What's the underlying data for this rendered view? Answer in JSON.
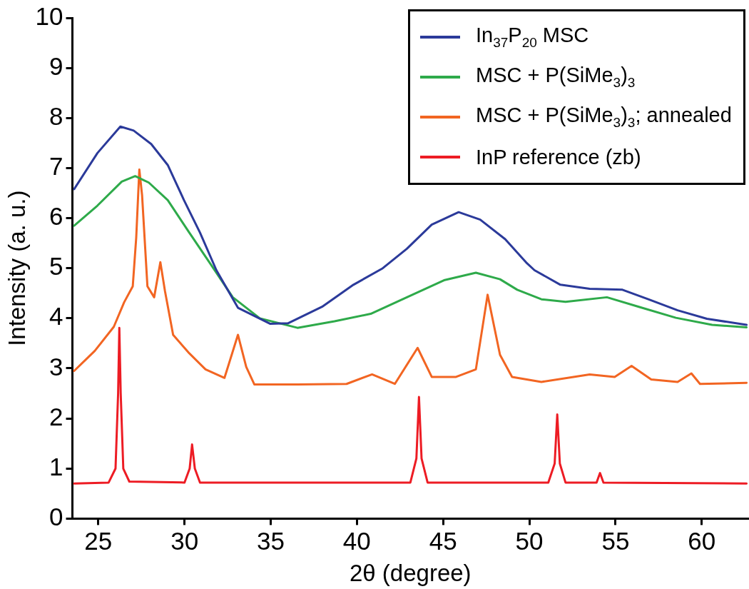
{
  "chart_data": {
    "type": "line",
    "xlabel": "2θ (degree)",
    "ylabel": "Intensity (a. u.)",
    "xlim": [
      23.5,
      62.7
    ],
    "xticks": [
      25,
      30,
      35,
      40,
      45,
      50,
      55,
      60
    ],
    "ylim": [
      0,
      10
    ],
    "yticks": [
      0,
      1,
      2,
      3,
      4,
      5,
      6,
      7,
      8,
      9,
      10
    ],
    "legend": "top right",
    "marker": "none",
    "line_style": "solid",
    "series": [
      {
        "name": "In$_{37}$P$_{20}$ MSC",
        "color": "#2b3a9a",
        "x": [
          23.6,
          24.95,
          26.28,
          27.05,
          28.07,
          29.03,
          29.97,
          30.9,
          31.85,
          33.1,
          34.98,
          36.0,
          37.98,
          39.8,
          41.5,
          42.9,
          44.34,
          45.9,
          47.15,
          48.6,
          49.86,
          50.3,
          51.8,
          53.5,
          55.4,
          56.9,
          58.6,
          60.3,
          62.6
        ],
        "values": [
          6.58,
          7.3,
          7.83,
          7.75,
          7.48,
          7.06,
          6.36,
          5.71,
          4.96,
          4.21,
          3.89,
          3.9,
          4.23,
          4.67,
          5.0,
          5.39,
          5.87,
          6.12,
          5.97,
          5.58,
          5.1,
          4.96,
          4.67,
          4.59,
          4.57,
          4.38,
          4.16,
          3.99,
          3.87
        ]
      },
      {
        "name": "MSC + P(SiMe$_{3}$)$_{3}$",
        "color": "#2eaa4a",
        "x": [
          23.6,
          24.95,
          26.36,
          27.14,
          27.93,
          29.03,
          30.28,
          31.54,
          32.8,
          34.37,
          36.55,
          38.7,
          40.8,
          42.9,
          45.05,
          46.9,
          48.3,
          49.3,
          50.7,
          52.1,
          54.5,
          56.35,
          58.5,
          60.6,
          62.6
        ],
        "values": [
          5.85,
          6.25,
          6.73,
          6.84,
          6.71,
          6.36,
          5.71,
          5.07,
          4.42,
          4.0,
          3.81,
          3.94,
          4.09,
          4.42,
          4.76,
          4.91,
          4.78,
          4.57,
          4.38,
          4.33,
          4.42,
          4.23,
          4.01,
          3.87,
          3.82
        ]
      },
      {
        "name": "MSC + P(SiMe$_{3}$)$_{3}$; annealed",
        "color": "#f26522",
        "x": [
          23.6,
          24.8,
          25.9,
          26.5,
          27.0,
          27.2,
          27.38,
          27.54,
          27.85,
          28.24,
          28.6,
          28.87,
          29.34,
          30.28,
          31.22,
          32.32,
          33.1,
          33.58,
          34.05,
          36.55,
          39.4,
          40.88,
          42.2,
          43.52,
          44.34,
          45.75,
          46.9,
          47.58,
          48.3,
          49.0,
          50.7,
          53.5,
          54.95,
          55.93,
          57.07,
          58.6,
          59.4,
          59.9,
          62.6
        ],
        "values": [
          2.95,
          3.35,
          3.83,
          4.32,
          4.64,
          5.61,
          6.97,
          6.46,
          4.64,
          4.42,
          5.12,
          4.54,
          3.67,
          3.3,
          2.98,
          2.81,
          3.67,
          3.03,
          2.68,
          2.68,
          2.69,
          2.88,
          2.69,
          3.41,
          2.83,
          2.83,
          2.98,
          4.47,
          3.27,
          2.83,
          2.73,
          2.88,
          2.83,
          3.05,
          2.78,
          2.73,
          2.9,
          2.69,
          2.71
        ]
      },
      {
        "name": "InP reference (zb)",
        "color": "#ed1c24",
        "x": [
          23.6,
          25.6,
          26.0,
          26.15,
          26.22,
          26.3,
          26.45,
          26.8,
          30.0,
          30.3,
          30.44,
          30.6,
          30.9,
          43.1,
          43.45,
          43.6,
          43.75,
          44.1,
          51.1,
          51.47,
          51.62,
          51.77,
          52.1,
          53.9,
          54.1,
          54.3,
          62.6
        ],
        "values": [
          0.7,
          0.72,
          1.0,
          2.5,
          3.81,
          2.5,
          1.0,
          0.74,
          0.72,
          1.0,
          1.48,
          1.0,
          0.72,
          0.72,
          1.2,
          2.43,
          1.2,
          0.72,
          0.72,
          1.1,
          2.08,
          1.1,
          0.72,
          0.72,
          0.91,
          0.72,
          0.7
        ]
      }
    ]
  }
}
